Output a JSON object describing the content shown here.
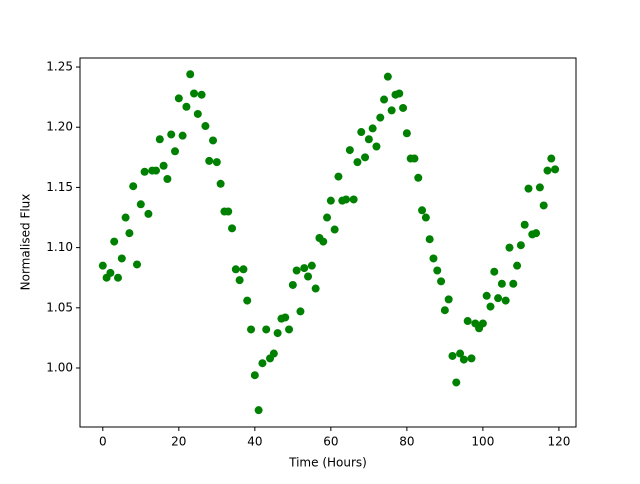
{
  "chart_data": {
    "type": "scatter",
    "xlabel": "Time (Hours)",
    "ylabel": "Normalised Flux",
    "color": "#008000",
    "x": [
      0,
      1,
      2,
      3,
      4,
      5,
      6,
      7,
      8,
      9,
      10,
      11,
      12,
      13,
      14,
      15,
      16,
      17,
      18,
      19,
      20,
      21,
      22,
      23,
      24,
      25,
      26,
      27,
      28,
      29,
      30,
      31,
      32,
      33,
      34,
      35,
      36,
      37,
      38,
      39,
      40,
      41,
      42,
      43,
      44,
      45,
      46,
      47,
      48,
      49,
      50,
      51,
      52,
      53,
      54,
      55,
      56,
      57,
      58,
      59,
      60,
      61,
      62,
      63,
      64,
      65,
      66,
      67,
      68,
      69,
      70,
      71,
      72,
      73,
      74,
      75,
      76,
      77,
      78,
      79,
      80,
      81,
      82,
      83,
      84,
      85,
      86,
      87,
      88,
      89,
      90,
      91,
      92,
      93,
      94,
      95,
      96,
      97,
      98,
      99,
      100,
      101,
      102,
      103,
      104,
      105,
      106,
      107,
      108,
      109,
      110,
      111,
      112,
      113,
      114,
      115,
      116,
      117,
      118,
      119
    ],
    "values": [
      1.085,
      1.075,
      1.079,
      1.105,
      1.075,
      1.091,
      1.125,
      1.112,
      1.151,
      1.086,
      1.136,
      1.163,
      1.128,
      1.164,
      1.164,
      1.19,
      1.168,
      1.157,
      1.194,
      1.18,
      1.224,
      1.193,
      1.217,
      1.244,
      1.228,
      1.211,
      1.227,
      1.201,
      1.172,
      1.189,
      1.171,
      1.153,
      1.13,
      1.13,
      1.116,
      1.082,
      1.073,
      1.082,
      1.056,
      1.032,
      0.994,
      0.965,
      1.004,
      1.032,
      1.008,
      1.012,
      1.029,
      1.041,
      1.042,
      1.032,
      1.069,
      1.081,
      1.047,
      1.083,
      1.076,
      1.085,
      1.066,
      1.108,
      1.105,
      1.125,
      1.139,
      1.115,
      1.159,
      1.139,
      1.14,
      1.181,
      1.14,
      1.171,
      1.196,
      1.175,
      1.19,
      1.199,
      1.184,
      1.208,
      1.223,
      1.242,
      1.214,
      1.227,
      1.228,
      1.216,
      1.195,
      1.174,
      1.174,
      1.158,
      1.131,
      1.125,
      1.107,
      1.091,
      1.081,
      1.072,
      1.048,
      1.057,
      1.01,
      0.988,
      1.012,
      1.007,
      1.039,
      1.008,
      1.037,
      1.033,
      1.037,
      1.06,
      1.051,
      1.08,
      1.058,
      1.07,
      1.056,
      1.1,
      1.07,
      1.085,
      1.102,
      1.119,
      1.149,
      1.111,
      1.112,
      1.15,
      1.135,
      1.164,
      1.174,
      1.165
    ],
    "xlim": [
      -6,
      124.5
    ],
    "ylim": [
      0.951,
      1.2575
    ],
    "xticks": [
      0,
      20,
      40,
      60,
      80,
      100,
      120
    ],
    "yticks": [
      {
        "value": 1.0,
        "label": "1.00"
      },
      {
        "value": 1.05,
        "label": "1.05"
      },
      {
        "value": 1.1,
        "label": "1.10"
      },
      {
        "value": 1.15,
        "label": "1.15"
      },
      {
        "value": 1.2,
        "label": "1.20"
      },
      {
        "value": 1.25,
        "label": "1.25"
      }
    ]
  }
}
